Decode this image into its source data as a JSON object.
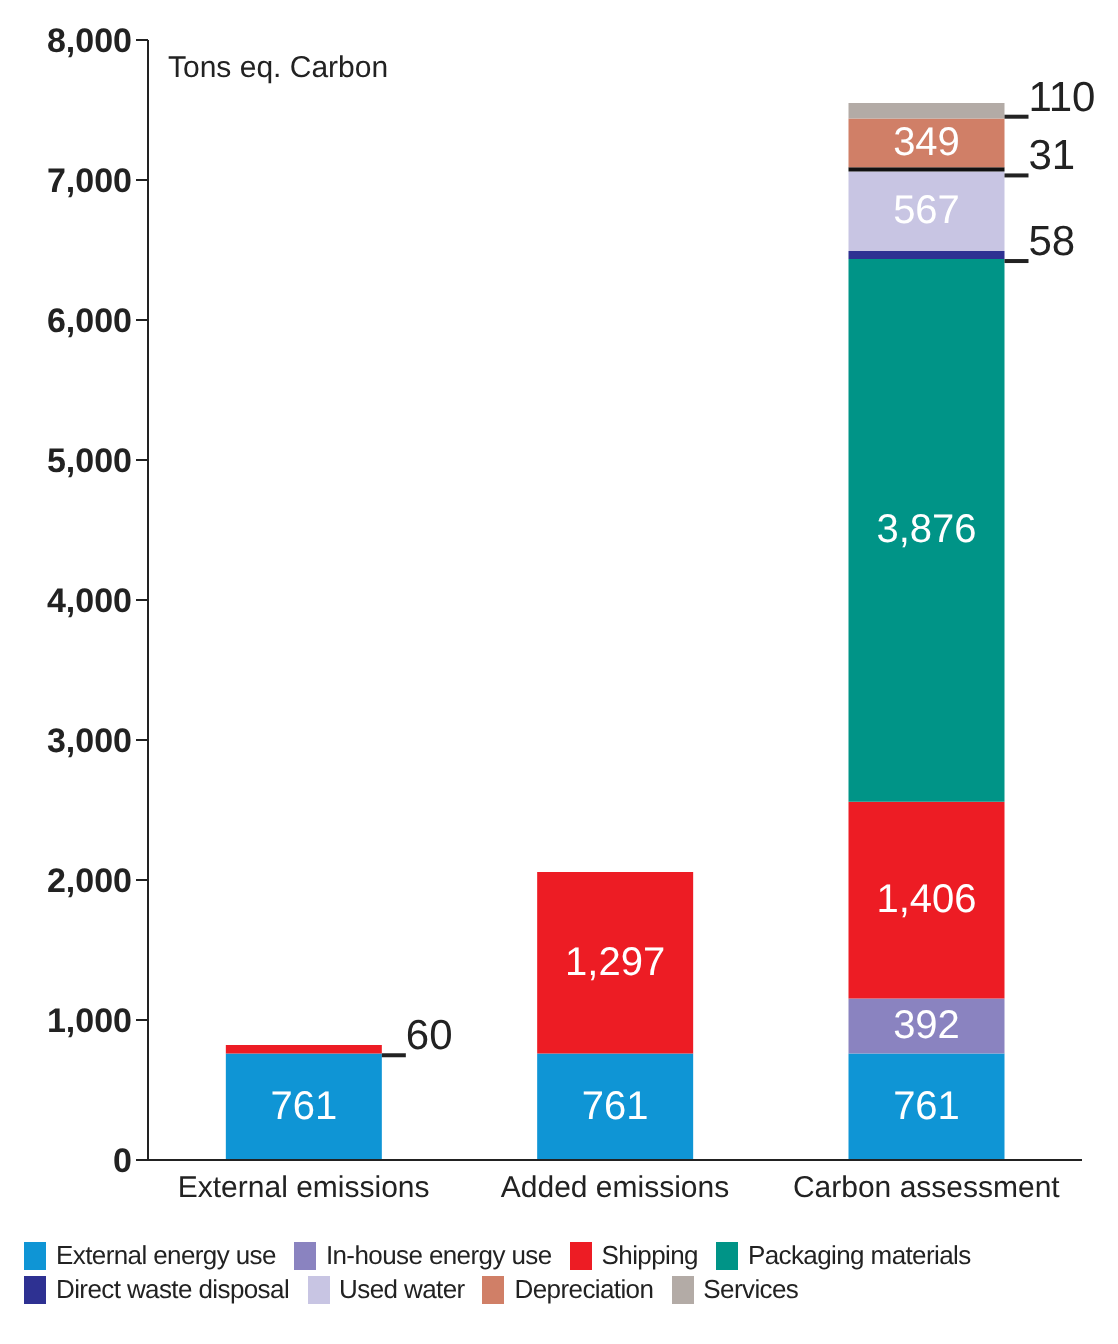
{
  "chart_data": {
    "type": "bar",
    "stacked": true,
    "ylabel": "Tons eq. Carbon",
    "categories": [
      "External emissions",
      "Added emissions",
      "Carbon assessment"
    ],
    "ylim": [
      0,
      8000
    ],
    "yticks": [
      {
        "value": 0,
        "label": "0"
      },
      {
        "value": 1000,
        "label": "1,000"
      },
      {
        "value": 2000,
        "label": "2,000"
      },
      {
        "value": 3000,
        "label": "3,000"
      },
      {
        "value": 4000,
        "label": "4,000"
      },
      {
        "value": 5000,
        "label": "5,000"
      },
      {
        "value": 6000,
        "label": "6,000"
      },
      {
        "value": 7000,
        "label": "7,000"
      },
      {
        "value": 8000,
        "label": "8,000"
      }
    ],
    "grid": false,
    "legend": "bottom",
    "series": [
      {
        "name": "External energy use",
        "color": "#0f95d5",
        "values": [
          761,
          761,
          761
        ],
        "value_labels": [
          "761",
          "761",
          "761"
        ]
      },
      {
        "name": "In-house energy use",
        "color": "#8a83c0",
        "values": [
          null,
          null,
          392
        ],
        "value_labels": [
          null,
          null,
          "392"
        ]
      },
      {
        "name": "Shipping",
        "color": "#ed1c24",
        "values": [
          60,
          1297,
          1406
        ],
        "value_labels": [
          "60",
          "1,297",
          "1,406"
        ]
      },
      {
        "name": "Packaging materials",
        "color": "#009487",
        "values": [
          null,
          null,
          3876
        ],
        "value_labels": [
          null,
          null,
          "3,876"
        ]
      },
      {
        "name": "Direct waste disposal",
        "color": "#2e3192",
        "values": [
          null,
          null,
          58
        ],
        "value_labels": [
          null,
          null,
          "58"
        ]
      },
      {
        "name": "Used water",
        "color": "#c8c5e3",
        "values": [
          null,
          null,
          567
        ],
        "value_labels": [
          null,
          null,
          "567"
        ]
      },
      {
        "color": "#111111",
        "values": [
          null,
          null,
          31
        ],
        "value_labels": [
          null,
          null,
          "31"
        ]
      },
      {
        "name": "Depreciation",
        "color": "#d07f67",
        "values": [
          null,
          null,
          349
        ],
        "value_labels": [
          null,
          null,
          "349"
        ]
      },
      {
        "name": "Services",
        "color": "#b3aba6",
        "values": [
          null,
          null,
          110
        ],
        "value_labels": [
          null,
          null,
          "110"
        ]
      }
    ]
  }
}
